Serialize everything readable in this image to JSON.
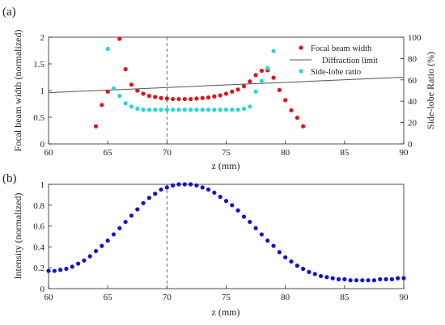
{
  "colors": {
    "focal": "#e0121a",
    "diffraction": "#555555",
    "sidelobe": "#24d8d6",
    "intensity": "#1212d2",
    "axis": "#222222",
    "marker_line": "#444444"
  },
  "chart_data": [
    {
      "panel": "(a)",
      "type": "scatter",
      "xlabel": "z (mm)",
      "ylabel": "Focal beam width (normalized)",
      "ylabel_right": "Side-lobe Ratio (%)",
      "xlim": [
        60,
        90
      ],
      "ylim": [
        0,
        2
      ],
      "ylim_right": [
        0,
        100
      ],
      "xticks": [
        "60",
        "65",
        "70",
        "75",
        "80",
        "85",
        "90"
      ],
      "yticks": [
        "0",
        "0.5",
        "1",
        "1.5",
        "2"
      ],
      "yticks_right": [
        "0",
        "20",
        "40",
        "60",
        "80",
        "100"
      ],
      "vline_x": 70,
      "legend_position": "top-right",
      "grid": false,
      "series": [
        {
          "name": "Focal beam width",
          "kind": "markers",
          "color": "#e0121a",
          "axis": "left",
          "x": [
            64,
            64.5,
            65,
            66,
            66.5,
            67,
            67.5,
            68,
            68.5,
            69,
            69.5,
            70,
            70.5,
            71,
            71.5,
            72,
            72.5,
            73,
            73.5,
            74,
            74.5,
            75,
            75.5,
            76,
            76.5,
            77,
            77.5,
            78,
            78.5,
            79,
            79.5,
            80,
            80.5,
            81,
            81.5
          ],
          "y": [
            0.33,
            0.73,
            0.98,
            1.97,
            1.4,
            1.11,
            1.0,
            0.94,
            0.9,
            0.88,
            0.86,
            0.85,
            0.84,
            0.84,
            0.84,
            0.84,
            0.85,
            0.86,
            0.87,
            0.89,
            0.91,
            0.94,
            0.98,
            1.02,
            1.08,
            1.17,
            1.29,
            1.37,
            1.38,
            1.24,
            1.01,
            0.82,
            0.63,
            0.49,
            0.33
          ]
        },
        {
          "name": "Diffraction limit",
          "kind": "line",
          "color": "#555555",
          "axis": "left",
          "x": [
            60,
            90
          ],
          "y": [
            0.96,
            1.25
          ]
        },
        {
          "name": "Side-lobe ratio",
          "kind": "markers",
          "color": "#24d8d6",
          "axis": "right",
          "x": [
            65,
            65.5,
            66,
            66.5,
            67,
            67.5,
            68,
            68.5,
            69,
            69.5,
            70,
            70.5,
            71,
            71.5,
            72,
            72.5,
            73,
            73.5,
            74,
            74.5,
            75,
            75.5,
            76,
            76.5,
            77,
            77.5,
            78,
            78.5,
            79
          ],
          "y": [
            89,
            52,
            45,
            38,
            35,
            33,
            32,
            32,
            32,
            32,
            32,
            32,
            32,
            32,
            32,
            32,
            32,
            32,
            32,
            32,
            32,
            32,
            32,
            33,
            35,
            49,
            59,
            71,
            87
          ]
        }
      ]
    },
    {
      "panel": "(b)",
      "type": "scatter",
      "xlabel": "z (mm)",
      "ylabel": "Intensity (normalized)",
      "xlim": [
        60,
        90
      ],
      "ylim": [
        0,
        1
      ],
      "xticks": [
        "60",
        "65",
        "70",
        "75",
        "80",
        "85",
        "90"
      ],
      "yticks": [
        "0",
        "0.2",
        "0.4",
        "0.6",
        "0.8",
        "1"
      ],
      "vline_x": 70,
      "grid": false,
      "series": [
        {
          "kind": "markers",
          "color": "#1212d2",
          "x": [
            60,
            60.5,
            61,
            61.5,
            62,
            62.5,
            63,
            63.5,
            64,
            64.5,
            65,
            65.5,
            66,
            66.5,
            67,
            67.5,
            68,
            68.5,
            69,
            69.5,
            70,
            70.5,
            71,
            71.5,
            72,
            72.5,
            73,
            73.5,
            74,
            74.5,
            75,
            75.5,
            76,
            76.5,
            77,
            77.5,
            78,
            78.5,
            79,
            79.5,
            80,
            80.5,
            81,
            81.5,
            82,
            82.5,
            83,
            83.5,
            84,
            84.5,
            85,
            85.5,
            86,
            86.5,
            87,
            87.5,
            88,
            88.5,
            89,
            89.5,
            90
          ],
          "y": [
            0.17,
            0.17,
            0.18,
            0.19,
            0.21,
            0.24,
            0.27,
            0.31,
            0.36,
            0.41,
            0.46,
            0.52,
            0.58,
            0.64,
            0.7,
            0.76,
            0.82,
            0.87,
            0.91,
            0.95,
            0.97,
            0.99,
            1.0,
            1.0,
            1.0,
            0.99,
            0.97,
            0.95,
            0.92,
            0.88,
            0.84,
            0.8,
            0.75,
            0.69,
            0.64,
            0.58,
            0.52,
            0.46,
            0.41,
            0.35,
            0.3,
            0.26,
            0.22,
            0.19,
            0.16,
            0.14,
            0.12,
            0.11,
            0.1,
            0.09,
            0.09,
            0.08,
            0.08,
            0.08,
            0.08,
            0.08,
            0.09,
            0.09,
            0.09,
            0.1,
            0.1
          ]
        }
      ]
    }
  ]
}
